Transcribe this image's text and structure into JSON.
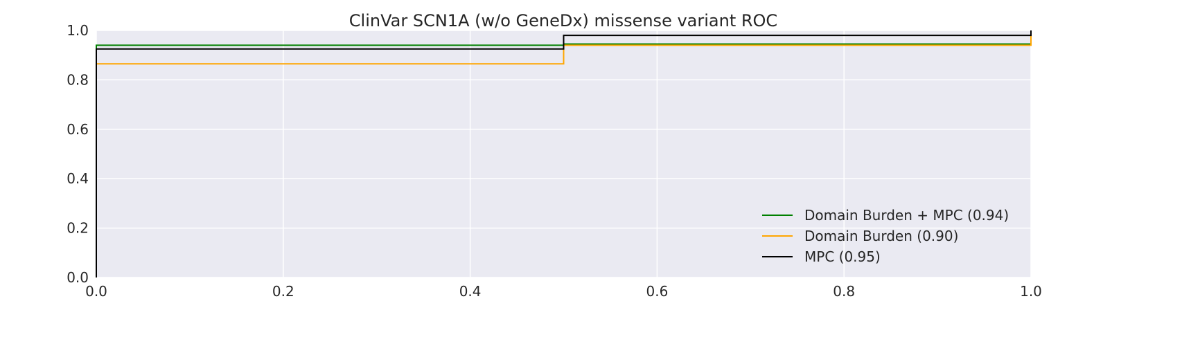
{
  "chart_data": {
    "type": "line",
    "title": "ClinVar SCN1A (w/o GeneDx) missense variant ROC",
    "xlabel": "",
    "ylabel": "",
    "xlim": [
      0.0,
      1.0
    ],
    "ylim": [
      0.0,
      1.0
    ],
    "x_ticks": [
      "0.0",
      "0.2",
      "0.4",
      "0.6",
      "0.8",
      "1.0"
    ],
    "y_ticks": [
      "0.0",
      "0.2",
      "0.4",
      "0.6",
      "0.8",
      "1.0"
    ],
    "grid": true,
    "legend_position": "lower-right",
    "series": [
      {
        "name": "Domain Burden + MPC (0.94)",
        "color": "#008000",
        "points": [
          [
            0.0,
            0.0
          ],
          [
            0.0,
            0.94
          ],
          [
            0.5,
            0.94
          ],
          [
            0.5,
            0.945
          ],
          [
            1.0,
            0.945
          ],
          [
            1.0,
            1.0
          ]
        ]
      },
      {
        "name": "Domain Burden (0.90)",
        "color": "#FFA500",
        "points": [
          [
            0.0,
            0.0
          ],
          [
            0.0,
            0.865
          ],
          [
            0.5,
            0.865
          ],
          [
            0.5,
            0.94
          ],
          [
            1.0,
            0.94
          ],
          [
            1.0,
            1.0
          ]
        ]
      },
      {
        "name": "MPC (0.95)",
        "color": "#000000",
        "points": [
          [
            0.0,
            0.0
          ],
          [
            0.0,
            0.925
          ],
          [
            0.5,
            0.925
          ],
          [
            0.5,
            0.98
          ],
          [
            1.0,
            0.98
          ],
          [
            1.0,
            1.0
          ]
        ]
      }
    ]
  }
}
